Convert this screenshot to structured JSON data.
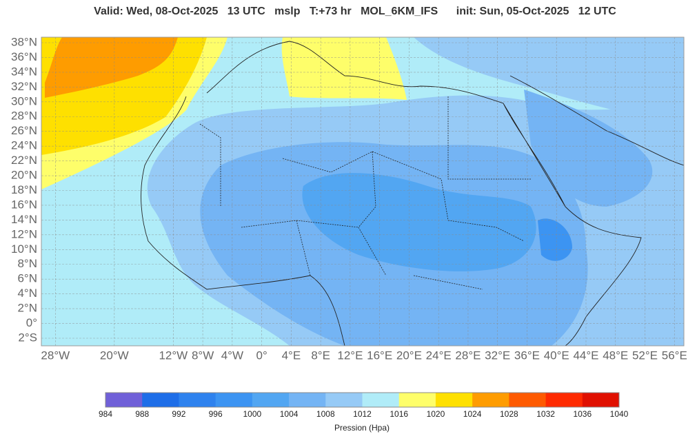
{
  "header": {
    "title": "Valid: Wed, 08-Oct-2025   13 UTC   mslp   T:+73 hr   MOL_6KM_IFS      init: Sun, 05-Oct-2025   12 UTC"
  },
  "map": {
    "lat_ticks": [
      {
        "value": 38,
        "label": "38°N"
      },
      {
        "value": 36,
        "label": "36°N"
      },
      {
        "value": 34,
        "label": "34°N"
      },
      {
        "value": 32,
        "label": "32°N"
      },
      {
        "value": 30,
        "label": "30°N"
      },
      {
        "value": 28,
        "label": "28°N"
      },
      {
        "value": 26,
        "label": "26°N"
      },
      {
        "value": 24,
        "label": "24°N"
      },
      {
        "value": 22,
        "label": "22°N"
      },
      {
        "value": 20,
        "label": "20°N"
      },
      {
        "value": 18,
        "label": "18°N"
      },
      {
        "value": 16,
        "label": "16°N"
      },
      {
        "value": 14,
        "label": "14°N"
      },
      {
        "value": 12,
        "label": "12°N"
      },
      {
        "value": 10,
        "label": "10°N"
      },
      {
        "value": 8,
        "label": "8°N"
      },
      {
        "value": 6,
        "label": "6°N"
      },
      {
        "value": 4,
        "label": "4°N"
      },
      {
        "value": 2,
        "label": "2°N"
      },
      {
        "value": 0,
        "label": "0°"
      },
      {
        "value": -2,
        "label": "2°S"
      }
    ],
    "lon_ticks": [
      {
        "value": -28,
        "label": "28°W"
      },
      {
        "value": -20,
        "label": "20°W"
      },
      {
        "value": -12,
        "label": "12°W"
      },
      {
        "value": -8,
        "label": "8°W"
      },
      {
        "value": -4,
        "label": "4°W"
      },
      {
        "value": 0,
        "label": "0°"
      },
      {
        "value": 4,
        "label": "4°E"
      },
      {
        "value": 8,
        "label": "8°E"
      },
      {
        "value": 12,
        "label": "12°E"
      },
      {
        "value": 16,
        "label": "16°E"
      },
      {
        "value": 20,
        "label": "20°E"
      },
      {
        "value": 24,
        "label": "24°E"
      },
      {
        "value": 28,
        "label": "28°E"
      },
      {
        "value": 32,
        "label": "32°E"
      },
      {
        "value": 36,
        "label": "36°E"
      },
      {
        "value": 40,
        "label": "40°E"
      },
      {
        "value": 44,
        "label": "44°E"
      },
      {
        "value": 48,
        "label": "48°E"
      },
      {
        "value": 52,
        "label": "52°E"
      },
      {
        "value": 56,
        "label": "56°E"
      }
    ]
  },
  "colorbar": {
    "label": "Pression (Hpa)",
    "levels": [
      984,
      988,
      992,
      996,
      1000,
      1004,
      1008,
      1012,
      1016,
      1020,
      1024,
      1028,
      1032,
      1036,
      1040
    ],
    "colors": [
      "#7060d8",
      "#1e6ee8",
      "#2e82ee",
      "#3c94f2",
      "#52a6f2",
      "#74b4f4",
      "#96caf6",
      "#b0ecf8",
      "#fefe6a",
      "#fee000",
      "#fe9c00",
      "#fe5a00",
      "#fe2a00",
      "#e01000"
    ]
  }
}
